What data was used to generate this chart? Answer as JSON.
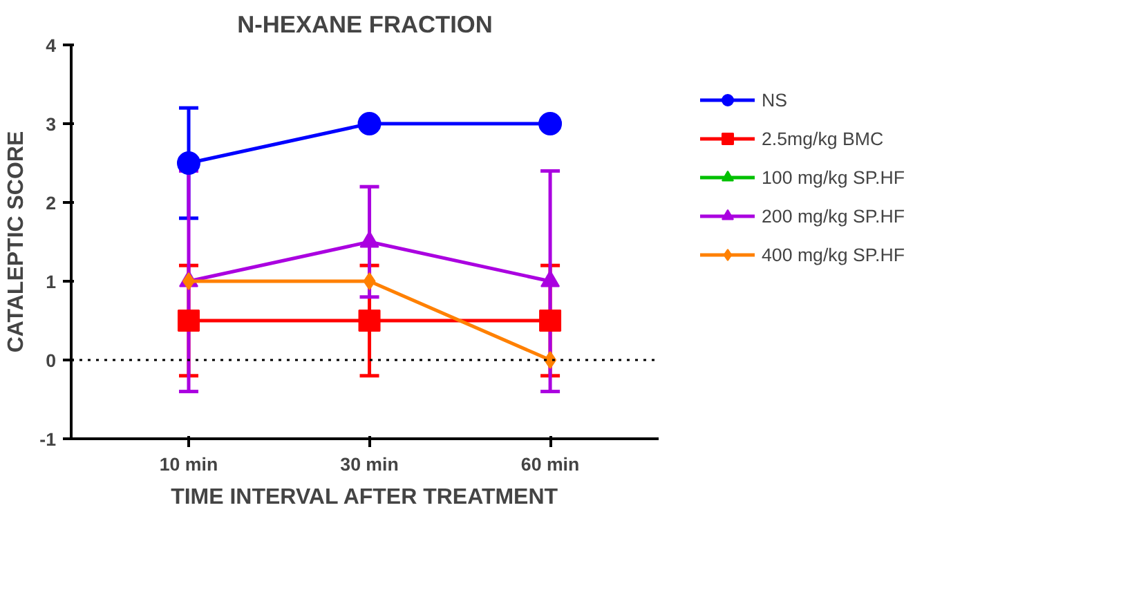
{
  "chart_data": {
    "type": "line",
    "title": "N-HEXANE FRACTION",
    "xlabel": "TIME INTERVAL AFTER TREATMENT",
    "ylabel": "CATALEPTIC SCORE",
    "categories": [
      "10 min",
      "30 min",
      "60 min"
    ],
    "ylim": [
      -1,
      4
    ],
    "yticks": [
      -1,
      0,
      1,
      2,
      3,
      4
    ],
    "grid": false,
    "legend": "right",
    "ref_lines": [
      {
        "axis": "y",
        "value": 0,
        "line_style": "dotted",
        "color": "#000000"
      }
    ],
    "series": [
      {
        "name": "NS",
        "color": "#0000ff",
        "marker": "circle",
        "values": [
          2.5,
          3,
          3
        ],
        "errors": [
          0.7,
          null,
          null
        ]
      },
      {
        "name": "2.5mg/kg BMC",
        "color": "#ff0000",
        "marker": "square",
        "values": [
          0.5,
          0.5,
          0.5
        ],
        "errors": [
          0.7,
          0.7,
          0.7
        ]
      },
      {
        "name": "100 mg/kg SP.HF",
        "color": "#00c000",
        "marker": "triangle",
        "values": [
          null,
          null,
          null
        ]
      },
      {
        "name": "200 mg/kg SP.HF",
        "color": "#aa00e0",
        "marker": "triangle",
        "values": [
          1,
          1.5,
          1
        ],
        "errors": [
          1.4,
          0.7,
          1.4
        ]
      },
      {
        "name": "400 mg/kg SP.HF",
        "color": "#ff8000",
        "marker": "diamond",
        "values": [
          1,
          1,
          0
        ]
      }
    ]
  }
}
